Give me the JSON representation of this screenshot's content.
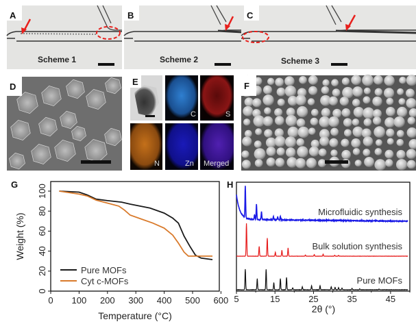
{
  "panels": {
    "A": {
      "label": "A",
      "caption": "Scheme 1"
    },
    "B": {
      "label": "B",
      "caption": "Scheme 2"
    },
    "C": {
      "label": "C",
      "caption": "Scheme 3"
    },
    "D": {
      "label": "D"
    },
    "E": {
      "label": "E",
      "tiles": [
        "",
        "C",
        "S",
        "N",
        "Zn",
        "Merged"
      ]
    },
    "F": {
      "label": "F"
    },
    "G": {
      "label": "G"
    },
    "H": {
      "label": "H"
    }
  },
  "colors": {
    "arrow": "#e8201c",
    "pure": "#1a1a1a",
    "cyt": "#d97a2b",
    "micro": "#1a1ae6",
    "bulk": "#e61a1a",
    "xrd_pure": "#111111"
  },
  "chart_data": [
    {
      "type": "line",
      "panel": "G",
      "xlabel": "Temperature (°C)",
      "ylabel": "Weight (%)",
      "xlim": [
        0,
        600
      ],
      "ylim": [
        0,
        100
      ],
      "xticks": [
        0,
        100,
        200,
        300,
        400,
        500,
        600
      ],
      "yticks": [
        0,
        20,
        40,
        60,
        80,
        100
      ],
      "legend": "bottom-left",
      "series": [
        {
          "name": "Pure MOFs",
          "color": "#1a1a1a",
          "x": [
            30,
            100,
            130,
            160,
            200,
            250,
            280,
            350,
            400,
            430,
            450,
            470,
            490,
            510,
            530,
            570
          ],
          "y": [
            100,
            99,
            96,
            92,
            90.5,
            89,
            87,
            83,
            78,
            73,
            68,
            55,
            45,
            36,
            33,
            31.5
          ]
        },
        {
          "name": "Cyt c-MOFs",
          "color": "#d97a2b",
          "x": [
            30,
            100,
            130,
            160,
            200,
            240,
            260,
            280,
            320,
            360,
            400,
            430,
            450,
            470,
            485,
            510,
            570
          ],
          "y": [
            100,
            97,
            95,
            91,
            88,
            85,
            81,
            76,
            72,
            68,
            63,
            56,
            48,
            39,
            35,
            35,
            35
          ]
        }
      ]
    },
    {
      "type": "line",
      "panel": "H",
      "xlabel": "2θ (°)",
      "xlim": [
        5,
        50
      ],
      "xticks": [
        5,
        15,
        25,
        35,
        45
      ],
      "series": [
        {
          "name": "Microfluidic synthesis",
          "color": "#1a1ae6",
          "peaks": [
            [
              7.3,
              1.0
            ],
            [
              10.2,
              0.5
            ],
            [
              11.5,
              0.25
            ],
            [
              9.7,
              0.15
            ],
            [
              14.6,
              0.1
            ],
            [
              15.7,
              0.1
            ],
            [
              16.4,
              0.12
            ]
          ]
        },
        {
          "name": "Bulk solution synthesis",
          "color": "#e61a1a",
          "peaks": [
            [
              7.6,
              1.0
            ],
            [
              10.9,
              0.3
            ],
            [
              13.0,
              0.55
            ],
            [
              15.1,
              0.12
            ],
            [
              16.8,
              0.18
            ],
            [
              18.4,
              0.25
            ],
            [
              22.9,
              0.04
            ],
            [
              25.2,
              0.05
            ],
            [
              27.5,
              0.06
            ],
            [
              30.5,
              0.03
            ],
            [
              31.5,
              0.02
            ]
          ]
        },
        {
          "name": "Pure MOFs",
          "color": "#111111",
          "peaks": [
            [
              7.3,
              1.0
            ],
            [
              10.4,
              0.55
            ],
            [
              12.7,
              1.0
            ],
            [
              14.7,
              0.35
            ],
            [
              16.4,
              0.55
            ],
            [
              18.0,
              0.6
            ],
            [
              19.6,
              0.1
            ],
            [
              22.1,
              0.15
            ],
            [
              24.5,
              0.2
            ],
            [
              26.7,
              0.2
            ],
            [
              29.6,
              0.15
            ],
            [
              30.6,
              0.12
            ],
            [
              31.5,
              0.1
            ],
            [
              32.4,
              0.08
            ],
            [
              35.0,
              0.07
            ],
            [
              37.0,
              0.04
            ],
            [
              42.0,
              0.03
            ]
          ]
        }
      ]
    }
  ]
}
